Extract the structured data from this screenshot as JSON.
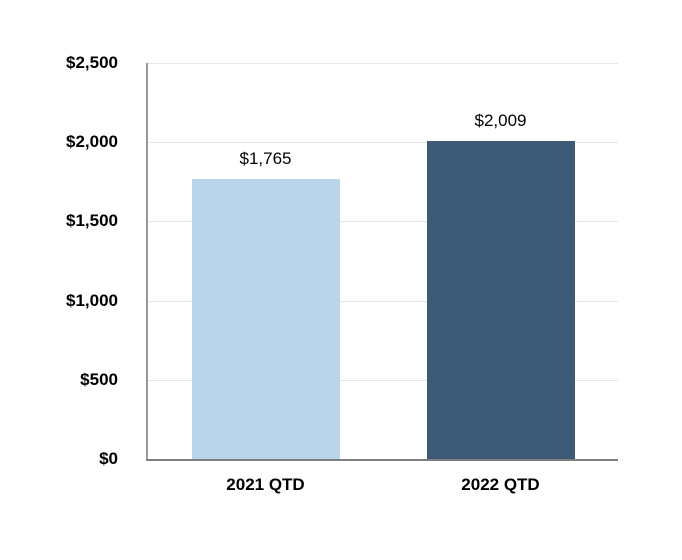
{
  "chart_data": {
    "type": "bar",
    "categories": [
      "2021 QTD",
      "2022 QTD"
    ],
    "values": [
      1765,
      2009
    ],
    "bar_labels": [
      "$1,765",
      "$2,009"
    ],
    "bar_colors": [
      "#b9d5e9",
      "#3c5a76"
    ],
    "title": "",
    "xlabel": "",
    "ylabel": "",
    "ylim": [
      0,
      2500
    ],
    "yticks": [
      {
        "value": 0,
        "label": "$0"
      },
      {
        "value": 500,
        "label": "$500"
      },
      {
        "value": 1000,
        "label": "$1,000"
      },
      {
        "value": 1500,
        "label": "$1,500"
      },
      {
        "value": 2000,
        "label": "$2,000"
      },
      {
        "value": 2500,
        "label": "$2,500"
      }
    ],
    "grid": true,
    "legend": false
  },
  "style": {
    "background": "#ffffff",
    "gridline_color": "#e7e7e7",
    "y_axis_line_color": "#999999",
    "x_axis_line_color": "#7f7f7f",
    "text_color": "#000000"
  }
}
